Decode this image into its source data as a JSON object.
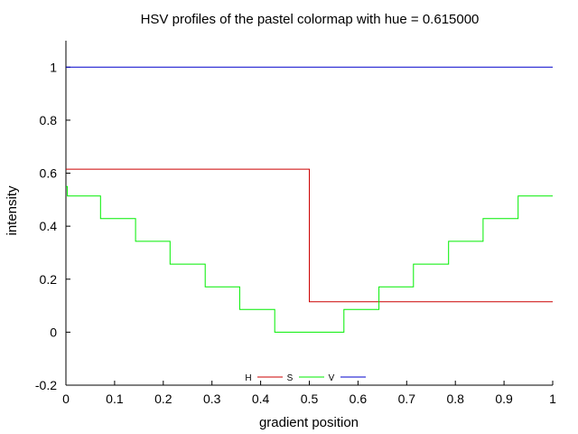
{
  "chart_data": {
    "type": "line",
    "title": "HSV profiles of the pastel colormap with hue = 0.615000",
    "xlabel": "gradient position",
    "ylabel": "intensity",
    "xlim": [
      0,
      1
    ],
    "ylim": [
      -0.2,
      1.1
    ],
    "x_ticks": [
      "0",
      "0.1",
      "0.2",
      "0.3",
      "0.4",
      "0.5",
      "0.6",
      "0.7",
      "0.8",
      "0.9",
      "1"
    ],
    "y_ticks": [
      "-0.2",
      "0",
      "0.2",
      "0.4",
      "0.6",
      "0.8",
      "1"
    ],
    "legend_position": "bottom-center",
    "series": [
      {
        "name": "H",
        "color": "#cc0000",
        "x": [
          0,
          0.5,
          0.5,
          1
        ],
        "y": [
          0.615,
          0.615,
          0.115,
          0.115
        ]
      },
      {
        "name": "S",
        "color": "#00ee00",
        "x": [
          0,
          0.003,
          0.003,
          0.071,
          0.071,
          0.143,
          0.143,
          0.214,
          0.214,
          0.286,
          0.286,
          0.357,
          0.357,
          0.429,
          0.429,
          0.571,
          0.571,
          0.643,
          0.643,
          0.714,
          0.714,
          0.786,
          0.786,
          0.857,
          0.857,
          0.929,
          0.929,
          1
        ],
        "y": [
          0.55,
          0.55,
          0.514,
          0.514,
          0.429,
          0.429,
          0.343,
          0.343,
          0.257,
          0.257,
          0.171,
          0.171,
          0.086,
          0.086,
          0.0,
          0.0,
          0.086,
          0.086,
          0.171,
          0.171,
          0.257,
          0.257,
          0.343,
          0.343,
          0.429,
          0.429,
          0.514,
          0.514
        ]
      },
      {
        "name": "V",
        "color": "#0000cc",
        "x": [
          0,
          1
        ],
        "y": [
          1,
          1
        ]
      }
    ]
  }
}
